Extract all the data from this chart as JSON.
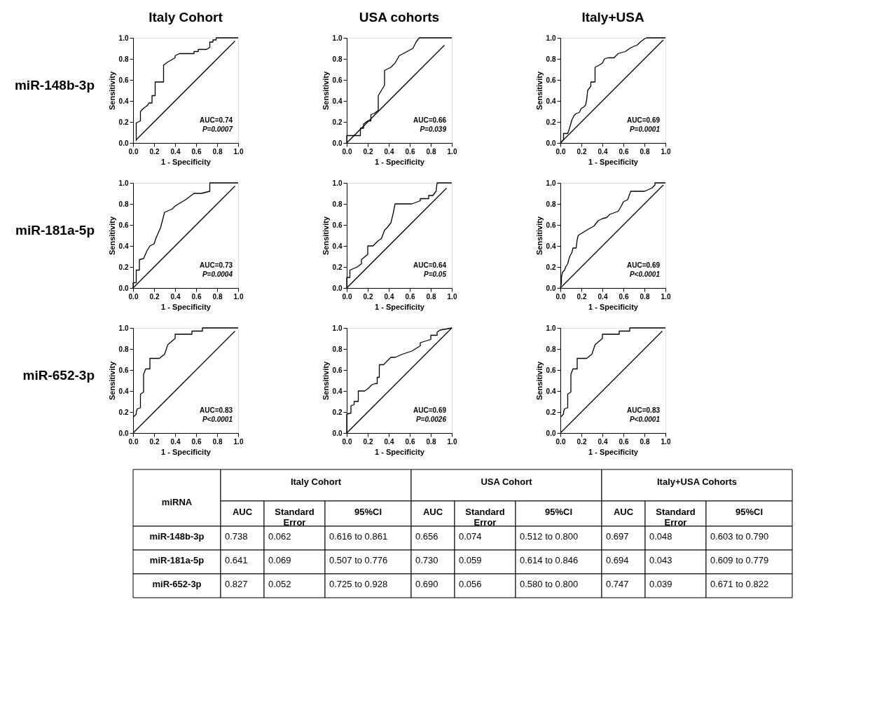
{
  "chart_data": [
    {
      "type": "line",
      "title": "Italy Cohort",
      "xlabel": "1 - Specificity",
      "ylabel": "Sensitivity",
      "xlim": [
        0,
        1
      ],
      "ylim": [
        0,
        1
      ],
      "xticks": [
        {
          "value": 0,
          "label": "0.0"
        },
        {
          "value": 0.2,
          "label": "0.2"
        },
        {
          "value": 0.4,
          "label": "0.4"
        },
        {
          "value": 0.6,
          "label": "0.6"
        },
        {
          "value": 0.8,
          "label": "0.8"
        },
        {
          "value": 1,
          "label": "1.0"
        }
      ],
      "yticks": [
        {
          "value": 0,
          "label": "0.0"
        },
        {
          "value": 0.2,
          "label": "0.2"
        },
        {
          "value": 0.4,
          "label": "0.4"
        },
        {
          "value": 0.6,
          "label": "0.6"
        },
        {
          "value": 0.8,
          "label": "0.8"
        },
        {
          "value": 1,
          "label": "1.0"
        }
      ],
      "annotations": [
        "miR-148b-3p",
        "AUC=0.74",
        "P=0.0007"
      ],
      "series": [
        {
          "type": "line",
          "color": "#000000",
          "x": [
            0.03,
            0.03,
            0.07,
            0.07,
            0.1,
            0.14,
            0.15,
            0.18,
            0.18,
            0.21,
            0.21,
            0.29,
            0.29,
            0.33,
            0.4,
            0.4,
            0.44,
            0.58,
            0.58,
            0.62,
            0.62,
            0.7,
            0.73,
            0.73,
            0.76,
            0.76,
            0.79,
            0.79,
            1.0
          ],
          "values": [
            0.02,
            0.19,
            0.21,
            0.3,
            0.33,
            0.36,
            0.38,
            0.38,
            0.45,
            0.45,
            0.58,
            0.58,
            0.74,
            0.77,
            0.81,
            0.83,
            0.85,
            0.85,
            0.87,
            0.87,
            0.89,
            0.89,
            0.91,
            0.96,
            0.96,
            0.98,
            0.98,
            1.0,
            1.0
          ]
        },
        {
          "type": "line",
          "color": "#000000",
          "x": [
            0.03,
            0.97
          ],
          "values": [
            0.03,
            0.97
          ]
        }
      ]
    },
    {
      "type": "line",
      "title": "USA cohorts",
      "xlabel": "1 - Specificity",
      "ylabel": "Sensitivity",
      "xlim": [
        0,
        1
      ],
      "ylim": [
        0,
        1
      ],
      "xticks": [
        {
          "value": 0,
          "label": "0.0"
        },
        {
          "value": 0.2,
          "label": "0.2"
        },
        {
          "value": 0.4,
          "label": "0.4"
        },
        {
          "value": 0.6,
          "label": "0.6"
        },
        {
          "value": 0.8,
          "label": "0.8"
        },
        {
          "value": 1,
          "label": "1.0"
        }
      ],
      "yticks": [
        {
          "value": 0,
          "label": "0.0"
        },
        {
          "value": 0.2,
          "label": "0.2"
        },
        {
          "value": 0.4,
          "label": "0.4"
        },
        {
          "value": 0.6,
          "label": "0.6"
        },
        {
          "value": 0.8,
          "label": "0.8"
        },
        {
          "value": 1,
          "label": "1.0"
        }
      ],
      "annotations": [
        "AUC=0.66",
        "P=0.039"
      ],
      "series": [
        {
          "type": "line",
          "color": "#000000",
          "x": [
            0,
            0,
            0.13,
            0.13,
            0.16,
            0.16,
            0.2,
            0.23,
            0.23,
            0.26,
            0.3,
            0.3,
            0.36,
            0.36,
            0.42,
            0.46,
            0.5,
            0.63,
            0.66,
            0.69,
            1.0
          ],
          "values": [
            0,
            0.07,
            0.07,
            0.14,
            0.14,
            0.18,
            0.21,
            0.21,
            0.27,
            0.28,
            0.31,
            0.45,
            0.55,
            0.69,
            0.72,
            0.76,
            0.83,
            0.9,
            0.96,
            1.0,
            1.0
          ]
        },
        {
          "type": "line",
          "color": "#000000",
          "x": [
            0,
            0.93
          ],
          "values": [
            0,
            0.93
          ]
        }
      ]
    },
    {
      "type": "line",
      "title": "Italy+USA",
      "xlabel": "1 - Specificity",
      "ylabel": "Sensitivity",
      "xlim": [
        0,
        1
      ],
      "ylim": [
        0,
        1
      ],
      "xticks": [
        {
          "value": 0,
          "label": "0.0"
        },
        {
          "value": 0.2,
          "label": "0.2"
        },
        {
          "value": 0.4,
          "label": "0.4"
        },
        {
          "value": 0.6,
          "label": "0.6"
        },
        {
          "value": 0.8,
          "label": "0.8"
        },
        {
          "value": 1,
          "label": "1.0"
        }
      ],
      "yticks": [
        {
          "value": 0,
          "label": "0.0"
        },
        {
          "value": 0.2,
          "label": "0.2"
        },
        {
          "value": 0.4,
          "label": "0.4"
        },
        {
          "value": 0.6,
          "label": "0.6"
        },
        {
          "value": 0.8,
          "label": "0.8"
        },
        {
          "value": 1,
          "label": "1.0"
        }
      ],
      "annotations": [
        "AUC=0.69",
        "P=0.0001"
      ],
      "series": [
        {
          "type": "line",
          "color": "#000000",
          "x": [
            0,
            0.03,
            0.03,
            0.07,
            0.09,
            0.11,
            0.13,
            0.15,
            0.18,
            0.2,
            0.22,
            0.24,
            0.25,
            0.26,
            0.29,
            0.29,
            0.33,
            0.33,
            0.37,
            0.4,
            0.42,
            0.45,
            0.51,
            0.55,
            0.62,
            0.66,
            0.7,
            0.73,
            0.76,
            0.8,
            0.82,
            1.0
          ],
          "values": [
            0,
            0.03,
            0.09,
            0.09,
            0.15,
            0.22,
            0.26,
            0.28,
            0.29,
            0.33,
            0.34,
            0.36,
            0.41,
            0.5,
            0.54,
            0.58,
            0.58,
            0.72,
            0.74,
            0.76,
            0.8,
            0.81,
            0.81,
            0.85,
            0.87,
            0.9,
            0.92,
            0.93,
            0.96,
            0.99,
            1.0,
            1.0
          ]
        },
        {
          "type": "line",
          "color": "#000000",
          "x": [
            0,
            0.98
          ],
          "values": [
            0,
            0.98
          ]
        }
      ]
    },
    {
      "type": "line",
      "xlabel": "1 - Specificity",
      "ylabel": "Sensitivity",
      "xlim": [
        0,
        1
      ],
      "ylim": [
        0,
        1
      ],
      "xticks": [
        {
          "value": 0,
          "label": "0.0"
        },
        {
          "value": 0.2,
          "label": "0.2"
        },
        {
          "value": 0.4,
          "label": "0.4"
        },
        {
          "value": 0.6,
          "label": "0.6"
        },
        {
          "value": 0.8,
          "label": "0.8"
        },
        {
          "value": 1,
          "label": "1.0"
        }
      ],
      "yticks": [
        {
          "value": 0,
          "label": "0.0"
        },
        {
          "value": 0.2,
          "label": "0.2"
        },
        {
          "value": 0.4,
          "label": "0.4"
        },
        {
          "value": 0.6,
          "label": "0.6"
        },
        {
          "value": 0.8,
          "label": "0.8"
        },
        {
          "value": 1,
          "label": "1.0"
        }
      ],
      "annotations": [
        "miR-181a-5p",
        "AUC=0.73",
        "P=0.0004"
      ],
      "series": [
        {
          "type": "line",
          "color": "#000000",
          "x": [
            0,
            0,
            0.03,
            0.03,
            0.06,
            0.06,
            0.1,
            0.13,
            0.16,
            0.2,
            0.22,
            0.26,
            0.3,
            0.37,
            0.4,
            0.5,
            0.58,
            0.65,
            0.73,
            0.73,
            1.0
          ],
          "values": [
            0,
            0.05,
            0.05,
            0.17,
            0.17,
            0.27,
            0.28,
            0.35,
            0.4,
            0.42,
            0.48,
            0.57,
            0.72,
            0.75,
            0.78,
            0.84,
            0.9,
            0.9,
            0.92,
            1.0,
            1.0
          ]
        },
        {
          "type": "line",
          "color": "#000000",
          "x": [
            0,
            0.97
          ],
          "values": [
            0,
            0.97
          ]
        }
      ]
    },
    {
      "type": "line",
      "xlabel": "1 - Specificity",
      "ylabel": "Sensitivity",
      "xlim": [
        0,
        1
      ],
      "ylim": [
        0,
        1
      ],
      "xticks": [
        {
          "value": 0,
          "label": "0.0"
        },
        {
          "value": 0.2,
          "label": "0.2"
        },
        {
          "value": 0.4,
          "label": "0.4"
        },
        {
          "value": 0.6,
          "label": "0.6"
        },
        {
          "value": 0.8,
          "label": "0.8"
        },
        {
          "value": 1,
          "label": "1.0"
        }
      ],
      "yticks": [
        {
          "value": 0,
          "label": "0.0"
        },
        {
          "value": 0.2,
          "label": "0.2"
        },
        {
          "value": 0.4,
          "label": "0.4"
        },
        {
          "value": 0.6,
          "label": "0.6"
        },
        {
          "value": 0.8,
          "label": "0.8"
        },
        {
          "value": 1,
          "label": "1.0"
        }
      ],
      "annotations": [
        "AUC=0.64",
        "P=0.05"
      ],
      "series": [
        {
          "type": "line",
          "color": "#000000",
          "x": [
            0,
            0,
            0.03,
            0.03,
            0.1,
            0.14,
            0.14,
            0.2,
            0.2,
            0.25,
            0.3,
            0.33,
            0.36,
            0.39,
            0.42,
            0.44,
            0.46,
            0.62,
            0.7,
            0.7,
            0.78,
            0.78,
            0.82,
            0.85,
            0.86,
            1.0
          ],
          "values": [
            0,
            0.1,
            0.1,
            0.17,
            0.2,
            0.23,
            0.27,
            0.32,
            0.4,
            0.4,
            0.45,
            0.47,
            0.55,
            0.58,
            0.62,
            0.7,
            0.8,
            0.8,
            0.83,
            0.85,
            0.85,
            0.88,
            0.88,
            0.92,
            1.0,
            1.0
          ]
        },
        {
          "type": "line",
          "color": "#000000",
          "x": [
            0,
            0.95
          ],
          "values": [
            0,
            0.95
          ]
        }
      ]
    },
    {
      "type": "line",
      "xlabel": "1 - Specificity",
      "ylabel": "Sensitivity",
      "xlim": [
        0,
        1
      ],
      "ylim": [
        0,
        1
      ],
      "xticks": [
        {
          "value": 0,
          "label": "0.0"
        },
        {
          "value": 0.2,
          "label": "0.2"
        },
        {
          "value": 0.4,
          "label": "0.4"
        },
        {
          "value": 0.6,
          "label": "0.6"
        },
        {
          "value": 0.8,
          "label": "0.8"
        },
        {
          "value": 1,
          "label": "1.0"
        }
      ],
      "yticks": [
        {
          "value": 0,
          "label": "0.0"
        },
        {
          "value": 0.2,
          "label": "0.2"
        },
        {
          "value": 0.4,
          "label": "0.4"
        },
        {
          "value": 0.6,
          "label": "0.6"
        },
        {
          "value": 0.8,
          "label": "0.8"
        },
        {
          "value": 1,
          "label": "1.0"
        }
      ],
      "annotations": [
        "AUC=0.69",
        "P<0.0001"
      ],
      "series": [
        {
          "type": "line",
          "color": "#000000",
          "x": [
            0,
            0.01,
            0.01,
            0.02,
            0.04,
            0.05,
            0.07,
            0.08,
            0.09,
            0.11,
            0.12,
            0.15,
            0.16,
            0.17,
            0.25,
            0.32,
            0.36,
            0.4,
            0.44,
            0.47,
            0.55,
            0.58,
            0.6,
            0.64,
            0.67,
            0.8,
            0.87,
            0.9,
            0.9,
            1.0
          ],
          "values": [
            0,
            0.05,
            0.1,
            0.15,
            0.17,
            0.2,
            0.23,
            0.27,
            0.3,
            0.34,
            0.38,
            0.38,
            0.46,
            0.5,
            0.55,
            0.59,
            0.64,
            0.66,
            0.67,
            0.7,
            0.73,
            0.78,
            0.82,
            0.84,
            0.92,
            0.92,
            0.95,
            0.98,
            1.0,
            1.0
          ]
        },
        {
          "type": "line",
          "color": "#000000",
          "x": [
            0,
            0.98
          ],
          "values": [
            0,
            0.98
          ]
        }
      ]
    },
    {
      "type": "line",
      "xlabel": "1 - Specificity",
      "ylabel": "Sensitivity",
      "xlim": [
        0,
        1
      ],
      "ylim": [
        0,
        1
      ],
      "xticks": [
        {
          "value": 0,
          "label": "0.0"
        },
        {
          "value": 0.2,
          "label": "0.2"
        },
        {
          "value": 0.4,
          "label": "0.4"
        },
        {
          "value": 0.6,
          "label": "0.6"
        },
        {
          "value": 0.8,
          "label": "0.8"
        },
        {
          "value": 1,
          "label": "1.0"
        }
      ],
      "yticks": [
        {
          "value": 0,
          "label": "0.0"
        },
        {
          "value": 0.2,
          "label": "0.2"
        },
        {
          "value": 0.4,
          "label": "0.4"
        },
        {
          "value": 0.6,
          "label": "0.6"
        },
        {
          "value": 0.8,
          "label": "0.8"
        },
        {
          "value": 1,
          "label": "1.0"
        }
      ],
      "annotations": [
        "miR-652-3p",
        "AUC=0.83",
        "P<0.0001"
      ],
      "series": [
        {
          "type": "line",
          "color": "#000000",
          "x": [
            0,
            0.03,
            0.03,
            0.04,
            0.07,
            0.07,
            0.1,
            0.1,
            0.12,
            0.16,
            0.16,
            0.25,
            0.3,
            0.33,
            0.4,
            0.4,
            0.56,
            0.56,
            0.66,
            0.66,
            1.0
          ],
          "values": [
            0.15,
            0.18,
            0.2,
            0.23,
            0.24,
            0.37,
            0.39,
            0.56,
            0.61,
            0.61,
            0.71,
            0.71,
            0.75,
            0.84,
            0.9,
            0.94,
            0.94,
            0.97,
            0.97,
            1.0,
            1.0
          ]
        },
        {
          "type": "line",
          "color": "#000000",
          "x": [
            0,
            0.97
          ],
          "values": [
            0,
            0.97
          ]
        }
      ]
    },
    {
      "type": "line",
      "xlabel": "1 - Specificity",
      "ylabel": "Sensitivity",
      "xlim": [
        0,
        1
      ],
      "ylim": [
        0,
        1
      ],
      "xticks": [
        {
          "value": 0,
          "label": "0.0"
        },
        {
          "value": 0.2,
          "label": "0.2"
        },
        {
          "value": 0.4,
          "label": "0.4"
        },
        {
          "value": 0.6,
          "label": "0.6"
        },
        {
          "value": 0.8,
          "label": "0.8"
        },
        {
          "value": 1,
          "label": "1.0"
        }
      ],
      "yticks": [
        {
          "value": 0,
          "label": "0.0"
        },
        {
          "value": 0.2,
          "label": "0.2"
        },
        {
          "value": 0.4,
          "label": "0.4"
        },
        {
          "value": 0.6,
          "label": "0.6"
        },
        {
          "value": 0.8,
          "label": "0.8"
        },
        {
          "value": 1,
          "label": "1.0"
        }
      ],
      "annotations": [
        "AUC=0.69",
        "P=0.0026"
      ],
      "series": [
        {
          "type": "line",
          "color": "#000000",
          "x": [
            0,
            0,
            0.04,
            0.04,
            0.07,
            0.07,
            0.11,
            0.11,
            0.17,
            0.2,
            0.24,
            0.27,
            0.29,
            0.29,
            0.31,
            0.31,
            0.35,
            0.4,
            0.42,
            0.46,
            0.53,
            0.62,
            0.7,
            0.7,
            0.8,
            0.8,
            0.86,
            0.86,
            0.89,
            0.95,
            1.0
          ],
          "values": [
            0,
            0.18,
            0.19,
            0.26,
            0.27,
            0.3,
            0.3,
            0.4,
            0.4,
            0.42,
            0.46,
            0.47,
            0.47,
            0.53,
            0.53,
            0.65,
            0.65,
            0.7,
            0.72,
            0.72,
            0.75,
            0.78,
            0.83,
            0.86,
            0.89,
            0.93,
            0.93,
            0.96,
            0.98,
            0.99,
            1.0
          ]
        },
        {
          "type": "line",
          "color": "#000000",
          "x": [
            0,
            1.0
          ],
          "values": [
            0,
            1.0
          ]
        }
      ]
    },
    {
      "type": "line",
      "xlabel": "1 - Specificity",
      "ylabel": "Sensitivity",
      "xlim": [
        0,
        1
      ],
      "ylim": [
        0,
        1
      ],
      "xticks": [
        {
          "value": 0,
          "label": "0.0"
        },
        {
          "value": 0.2,
          "label": "0.2"
        },
        {
          "value": 0.4,
          "label": "0.4"
        },
        {
          "value": 0.6,
          "label": "0.6"
        },
        {
          "value": 0.8,
          "label": "0.8"
        },
        {
          "value": 1,
          "label": "1.0"
        }
      ],
      "yticks": [
        {
          "value": 0,
          "label": "0.0"
        },
        {
          "value": 0.2,
          "label": "0.2"
        },
        {
          "value": 0.4,
          "label": "0.4"
        },
        {
          "value": 0.6,
          "label": "0.6"
        },
        {
          "value": 0.8,
          "label": "0.8"
        },
        {
          "value": 1,
          "label": "1.0"
        }
      ],
      "annotations": [
        "AUC=0.83",
        "P<0.0001"
      ],
      "series": [
        {
          "type": "line",
          "color": "#000000",
          "x": [
            0,
            0.03,
            0.03,
            0.04,
            0.07,
            0.07,
            0.1,
            0.1,
            0.12,
            0.16,
            0.16,
            0.25,
            0.3,
            0.33,
            0.4,
            0.4,
            0.56,
            0.56,
            0.66,
            0.66,
            1.0
          ],
          "values": [
            0.15,
            0.18,
            0.2,
            0.23,
            0.24,
            0.37,
            0.39,
            0.56,
            0.61,
            0.61,
            0.71,
            0.71,
            0.75,
            0.84,
            0.9,
            0.94,
            0.94,
            0.97,
            0.97,
            1.0,
            1.0
          ]
        },
        {
          "type": "line",
          "color": "#000000",
          "x": [
            0,
            0.97
          ],
          "values": [
            0,
            0.97
          ]
        }
      ]
    },
    {
      "type": "other",
      "categories": [
        "AUC",
        "Standard Error",
        "95%CI",
        "AUC",
        "Standard Error",
        "95%CI",
        "AUC",
        "Standard Error",
        "95%CI"
      ],
      "y_categories": [
        "miR-148b-3p",
        "miR-181a-5p",
        "miR-652-3p"
      ],
      "cell_labels": [
        [
          "0.738",
          "0.062",
          "0.616 to 0.861",
          "0.656",
          "0.074",
          "0.512 to 0.800",
          "0.697",
          "0.048",
          "0.603 to 0.790"
        ],
        [
          "0.641",
          "0.069",
          "0.507 to 0.776",
          "0.730",
          "0.059",
          "0.614 to 0.846",
          "0.694",
          "0.043",
          "0.609 to 0.779"
        ],
        [
          "0.827",
          "0.052",
          "0.725 to 0.928",
          "0.690",
          "0.056",
          "0.580 to 0.800",
          "0.747",
          "0.039",
          "0.671 to 0.822"
        ]
      ],
      "annotations": [
        "miRNA",
        "Italy Cohort",
        "USA Cohort",
        "Italy+USA Cohorts"
      ]
    }
  ]
}
